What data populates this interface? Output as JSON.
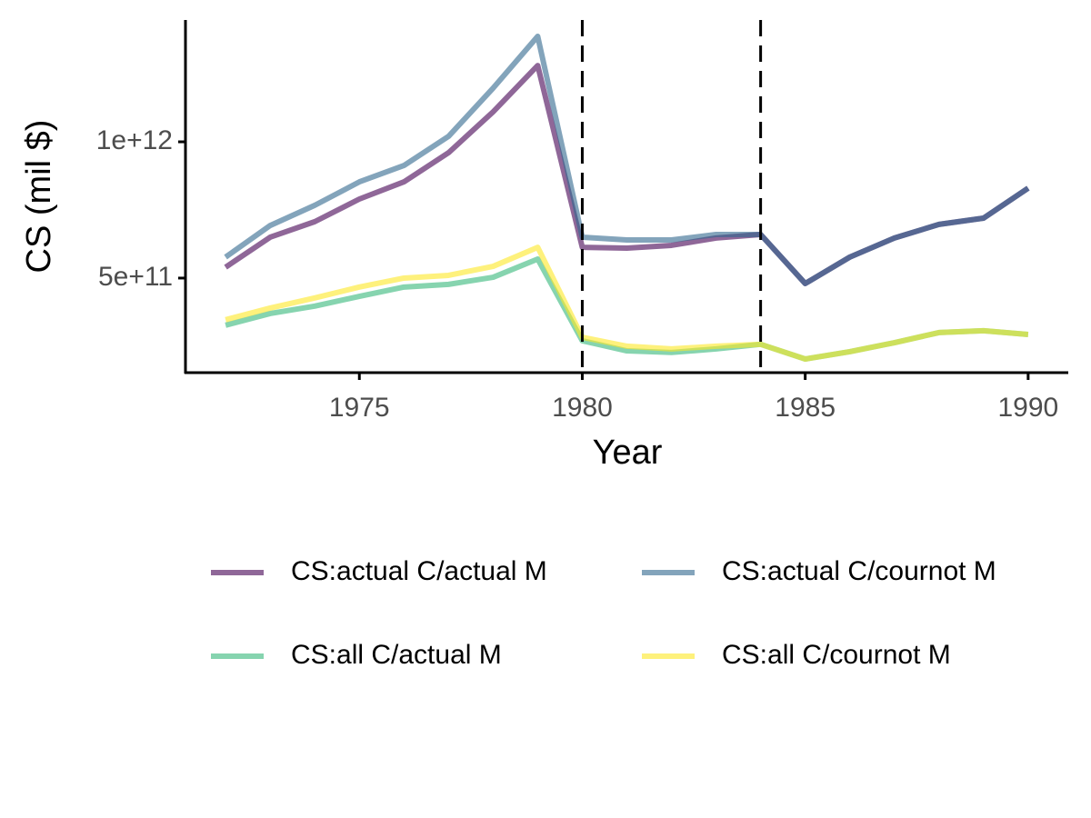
{
  "chart_data": {
    "type": "line",
    "x_label": "Year",
    "y_label": "CS (mil $)",
    "x": [
      1972,
      1973,
      1974,
      1975,
      1976,
      1977,
      1978,
      1979,
      1980,
      1981,
      1982,
      1983,
      1984,
      1985,
      1986,
      1987,
      1988,
      1989,
      1990
    ],
    "series": [
      {
        "name": "CS:actual C/actual M",
        "color": "#440154",
        "values": [
          540000000000.0,
          650000000000.0,
          707000000000.0,
          790000000000.0,
          853000000000.0,
          960000000000.0,
          1110000000000.0,
          1280000000000.0,
          613000000000.0,
          610000000000.0,
          620000000000.0,
          647000000000.0,
          660000000000.0,
          480000000000.0,
          577000000000.0,
          647000000000.0,
          697000000000.0,
          720000000000.0,
          830000000000.0
        ]
      },
      {
        "name": "CS:actual C/cournot M",
        "color": "#31688e",
        "values": [
          577000000000.0,
          693000000000.0,
          767000000000.0,
          853000000000.0,
          913000000000.0,
          1020000000000.0,
          1197000000000.0,
          1387000000000.0,
          650000000000.0,
          640000000000.0,
          640000000000.0,
          660000000000.0,
          660000000000.0,
          480000000000.0,
          577000000000.0,
          647000000000.0,
          697000000000.0,
          720000000000.0,
          830000000000.0
        ]
      },
      {
        "name": "CS:all C/actual M",
        "color": "#35b779",
        "values": [
          327000000000.0,
          370000000000.0,
          397000000000.0,
          433000000000.0,
          467000000000.0,
          477000000000.0,
          503000000000.0,
          570000000000.0,
          270000000000.0,
          233000000000.0,
          227000000000.0,
          240000000000.0,
          257000000000.0,
          203000000000.0,
          230000000000.0,
          263000000000.0,
          300000000000.0,
          307000000000.0,
          293000000000.0
        ]
      },
      {
        "name": "CS:all C/cournot M",
        "color": "#fde725",
        "values": [
          347000000000.0,
          390000000000.0,
          427000000000.0,
          467000000000.0,
          500000000000.0,
          510000000000.0,
          543000000000.0,
          613000000000.0,
          283000000000.0,
          250000000000.0,
          240000000000.0,
          250000000000.0,
          257000000000.0,
          203000000000.0,
          230000000000.0,
          263000000000.0,
          300000000000.0,
          307000000000.0,
          293000000000.0
        ]
      }
    ],
    "line_opacity": 0.6,
    "vlines": [
      1980,
      1984
    ],
    "xlim": [
      1971.1,
      1990.9
    ],
    "xticks": [
      1975,
      1980,
      1985,
      1990
    ],
    "ylim": [
      153000000000.0,
      1447000000000.0
    ],
    "yticks": [
      {
        "value": 500000000000,
        "label": "5e+11"
      },
      {
        "value": 1000000000000,
        "label": "1e+12"
      }
    ],
    "grid": false,
    "legend_position": "bottom"
  }
}
